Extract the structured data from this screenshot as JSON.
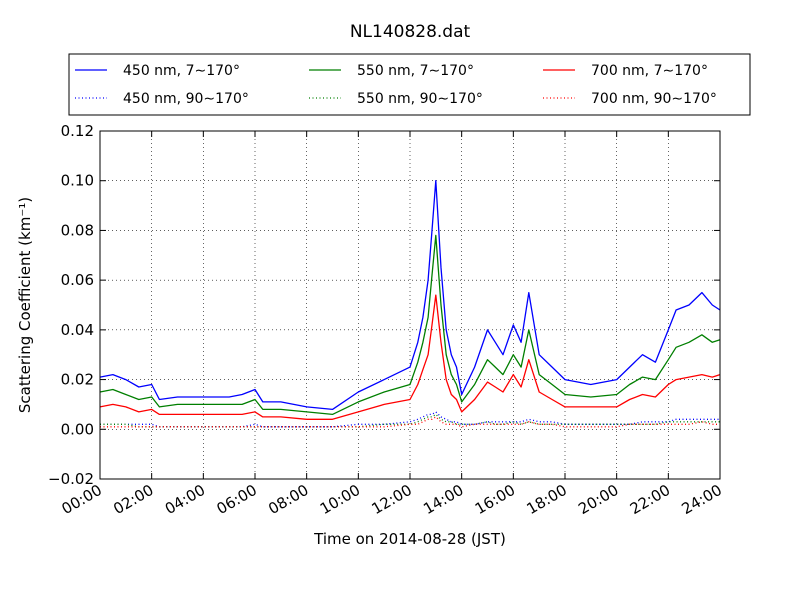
{
  "chart_data": {
    "type": "line",
    "title": "NL140828.dat",
    "xlabel": "Time on 2014-08-28 (JST)",
    "ylabel": "Scattering Coefficient (km⁻¹)",
    "xlim_hours": [
      0,
      24
    ],
    "ylim": [
      -0.02,
      0.12
    ],
    "x_tick_labels": [
      "00:00",
      "02:00",
      "04:00",
      "06:00",
      "08:00",
      "10:00",
      "12:00",
      "14:00",
      "16:00",
      "18:00",
      "20:00",
      "22:00",
      "24:00"
    ],
    "y_tick_labels": [
      "−0.02",
      "0.00",
      "0.02",
      "0.04",
      "0.06",
      "0.08",
      "0.10",
      "0.12"
    ],
    "grid": true,
    "legend_position": "top, above plot",
    "x_hours": [
      0,
      0.5,
      1,
      1.5,
      2,
      2.3,
      3,
      4,
      5,
      5.5,
      6,
      6.3,
      7,
      8,
      9,
      10,
      11,
      12,
      12.3,
      12.5,
      12.7,
      12.85,
      13,
      13.2,
      13.4,
      13.6,
      13.8,
      14,
      14.5,
      15,
      15.3,
      15.6,
      16,
      16.3,
      16.6,
      17,
      17.5,
      18,
      19,
      20,
      20.5,
      21,
      21.5,
      22,
      22.3,
      22.8,
      23.3,
      23.7,
      24
    ],
    "series": [
      {
        "name": "450 nm, 7∼170°",
        "color": "#0000ff",
        "style": "solid",
        "values": [
          0.021,
          0.022,
          0.02,
          0.017,
          0.018,
          0.012,
          0.013,
          0.013,
          0.013,
          0.014,
          0.016,
          0.011,
          0.011,
          0.009,
          0.008,
          0.015,
          0.02,
          0.025,
          0.035,
          0.045,
          0.06,
          0.08,
          0.1,
          0.065,
          0.04,
          0.03,
          0.025,
          0.014,
          0.025,
          0.04,
          0.035,
          0.03,
          0.042,
          0.035,
          0.055,
          0.03,
          0.025,
          0.02,
          0.018,
          0.02,
          0.025,
          0.03,
          0.027,
          0.04,
          0.048,
          0.05,
          0.055,
          0.05,
          0.048
        ]
      },
      {
        "name": "550 nm, 7∼170°",
        "color": "#007f00",
        "style": "solid",
        "values": [
          0.015,
          0.016,
          0.014,
          0.012,
          0.013,
          0.009,
          0.01,
          0.01,
          0.01,
          0.01,
          0.012,
          0.008,
          0.008,
          0.007,
          0.006,
          0.011,
          0.015,
          0.018,
          0.027,
          0.035,
          0.045,
          0.062,
          0.078,
          0.05,
          0.03,
          0.022,
          0.018,
          0.011,
          0.018,
          0.028,
          0.025,
          0.022,
          0.03,
          0.025,
          0.04,
          0.022,
          0.018,
          0.014,
          0.013,
          0.014,
          0.018,
          0.021,
          0.02,
          0.028,
          0.033,
          0.035,
          0.038,
          0.035,
          0.036
        ]
      },
      {
        "name": "700 nm, 7∼170°",
        "color": "#ff0000",
        "style": "solid",
        "values": [
          0.009,
          0.01,
          0.009,
          0.007,
          0.008,
          0.006,
          0.006,
          0.006,
          0.006,
          0.006,
          0.007,
          0.005,
          0.005,
          0.004,
          0.004,
          0.007,
          0.01,
          0.012,
          0.018,
          0.024,
          0.03,
          0.042,
          0.054,
          0.035,
          0.02,
          0.014,
          0.012,
          0.007,
          0.012,
          0.019,
          0.017,
          0.015,
          0.022,
          0.017,
          0.028,
          0.015,
          0.012,
          0.009,
          0.009,
          0.009,
          0.012,
          0.014,
          0.013,
          0.018,
          0.02,
          0.021,
          0.022,
          0.021,
          0.022
        ]
      },
      {
        "name": "450 nm, 90∼170°",
        "color": "#0000ff",
        "style": "dotted",
        "values": [
          0.002,
          0.002,
          0.002,
          0.002,
          0.002,
          0.001,
          0.001,
          0.001,
          0.001,
          0.001,
          0.002,
          0.001,
          0.001,
          0.001,
          0.001,
          0.002,
          0.002,
          0.003,
          0.004,
          0.005,
          0.006,
          0.006,
          0.007,
          0.005,
          0.004,
          0.003,
          0.003,
          0.002,
          0.002,
          0.003,
          0.003,
          0.003,
          0.003,
          0.003,
          0.004,
          0.003,
          0.003,
          0.002,
          0.002,
          0.002,
          0.002,
          0.003,
          0.003,
          0.003,
          0.004,
          0.004,
          0.004,
          0.004,
          0.004
        ]
      },
      {
        "name": "550 nm, 90∼170°",
        "color": "#007f00",
        "style": "dotted",
        "values": [
          0.002,
          0.002,
          0.002,
          0.001,
          0.001,
          0.001,
          0.001,
          0.001,
          0.001,
          0.001,
          0.001,
          0.001,
          0.001,
          0.001,
          0.001,
          0.001,
          0.002,
          0.002,
          0.003,
          0.004,
          0.005,
          0.005,
          0.006,
          0.004,
          0.003,
          0.003,
          0.002,
          0.002,
          0.002,
          0.003,
          0.002,
          0.002,
          0.003,
          0.002,
          0.003,
          0.002,
          0.002,
          0.002,
          0.002,
          0.002,
          0.002,
          0.002,
          0.002,
          0.003,
          0.003,
          0.003,
          0.003,
          0.003,
          0.003
        ]
      },
      {
        "name": "700 nm, 90∼170°",
        "color": "#ff0000",
        "style": "dotted",
        "values": [
          0.001,
          0.001,
          0.001,
          0.001,
          0.001,
          0.001,
          0.001,
          0.001,
          0.001,
          0.001,
          0.001,
          0.001,
          0.001,
          0.001,
          0.001,
          0.001,
          0.001,
          0.002,
          0.002,
          0.003,
          0.004,
          0.004,
          0.005,
          0.003,
          0.002,
          0.002,
          0.002,
          0.001,
          0.002,
          0.002,
          0.002,
          0.002,
          0.002,
          0.002,
          0.003,
          0.002,
          0.002,
          0.001,
          0.001,
          0.001,
          0.002,
          0.002,
          0.002,
          0.002,
          0.002,
          0.002,
          0.003,
          0.002,
          0.002
        ]
      }
    ]
  }
}
